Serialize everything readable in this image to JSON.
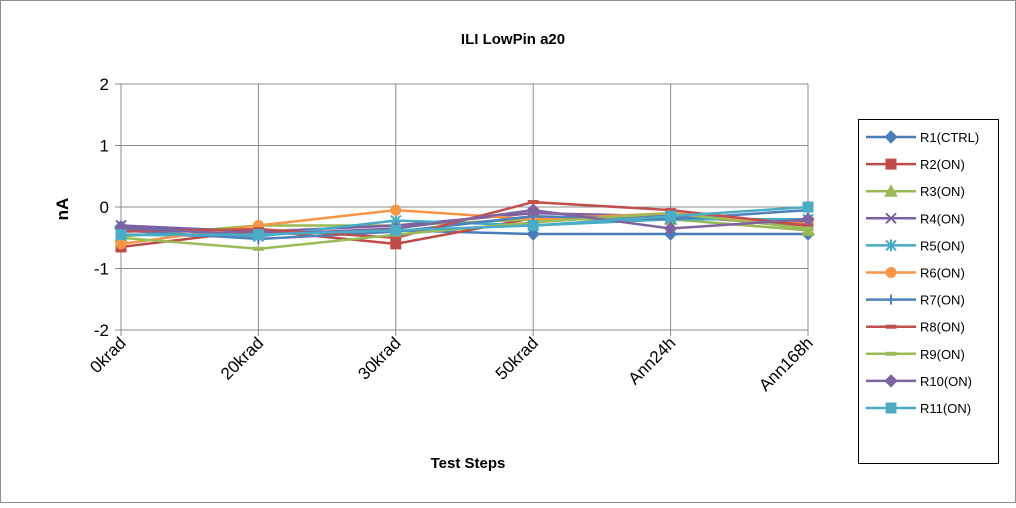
{
  "chart_data": {
    "type": "line",
    "title": "ILI LowPin a20",
    "xlabel": "Test Steps",
    "ylabel": "nA",
    "ylim": [
      -2,
      2
    ],
    "yticks": [
      "2",
      "1",
      "0",
      "-1",
      "-2"
    ],
    "ytick_values": [
      2,
      1,
      0,
      -1,
      -2
    ],
    "categories": [
      "0krad",
      "20krad",
      "30krad",
      "50krad",
      "Ann24h",
      "Ann168h"
    ],
    "grid": true,
    "legend_position": "right",
    "series": [
      {
        "name": "R1(CTRL)",
        "color": "#4A7EBB",
        "marker": "diamond",
        "values": [
          -0.32,
          -0.44,
          -0.38,
          -0.44,
          -0.44,
          -0.44
        ]
      },
      {
        "name": "R2(ON)",
        "color": "#BE4B48",
        "marker": "square",
        "values": [
          -0.65,
          -0.38,
          -0.6,
          -0.18,
          -0.15,
          -0.3
        ]
      },
      {
        "name": "R3(ON)",
        "color": "#98B954",
        "marker": "triangle",
        "values": [
          -0.48,
          -0.3,
          -0.3,
          -0.2,
          -0.2,
          -0.38
        ]
      },
      {
        "name": "R4(ON)",
        "color": "#7D60A0",
        "marker": "x",
        "values": [
          -0.3,
          -0.4,
          -0.3,
          -0.1,
          -0.15,
          -0.25
        ]
      },
      {
        "name": "R5(ON)",
        "color": "#46AAC5",
        "marker": "star",
        "values": [
          -0.45,
          -0.48,
          -0.22,
          -0.3,
          -0.2,
          -0.2
        ]
      },
      {
        "name": "R6(ON)",
        "color": "#F79646",
        "marker": "circle",
        "values": [
          -0.6,
          -0.3,
          -0.05,
          -0.2,
          -0.1,
          -0.28
        ]
      },
      {
        "name": "R7(ON)",
        "color": "#4F81BD",
        "marker": "plus",
        "values": [
          -0.38,
          -0.52,
          -0.4,
          -0.15,
          -0.2,
          -0.05
        ]
      },
      {
        "name": "R8(ON)",
        "color": "#C0504D",
        "marker": "dash",
        "values": [
          -0.4,
          -0.36,
          -0.5,
          0.08,
          -0.05,
          -0.3
        ]
      },
      {
        "name": "R9(ON)",
        "color": "#9BBB59",
        "marker": "dash",
        "values": [
          -0.5,
          -0.68,
          -0.45,
          -0.25,
          -0.1,
          -0.35
        ]
      },
      {
        "name": "R10(ON)",
        "color": "#8064A2",
        "marker": "diamond",
        "values": [
          -0.35,
          -0.45,
          -0.35,
          -0.05,
          -0.35,
          -0.2
        ]
      },
      {
        "name": "R11(ON)",
        "color": "#4BACC6",
        "marker": "square",
        "values": [
          -0.45,
          -0.45,
          -0.38,
          -0.3,
          -0.15,
          0.0
        ]
      }
    ]
  }
}
